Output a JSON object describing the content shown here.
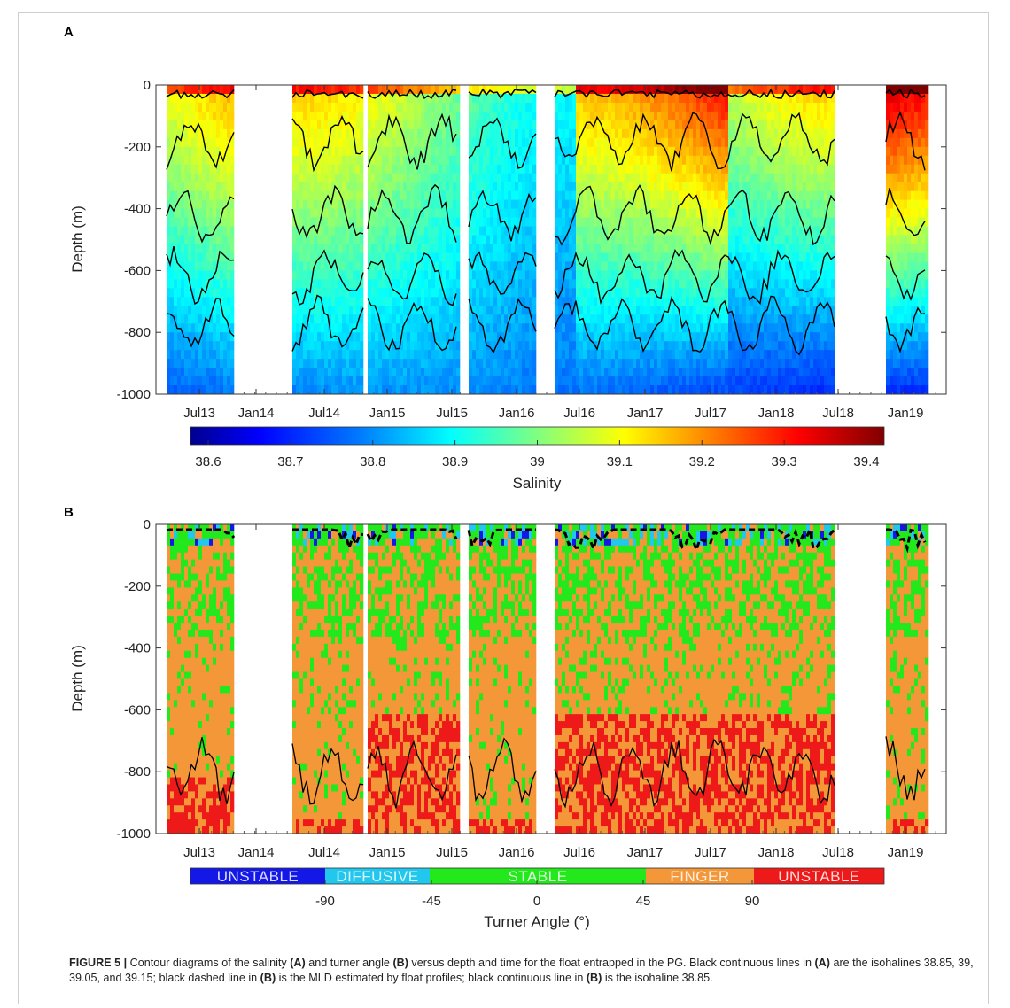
{
  "panels": {
    "a_label": "A",
    "b_label": "B",
    "ylabel": "Depth (m)",
    "colorbar_a_label": "Salinity",
    "colorbar_b_label": "Turner Angle (°)"
  },
  "time_ticks": [
    "Jul13",
    "Jan14",
    "Jul14",
    "Jan15",
    "Jul15",
    "Jan16",
    "Jul16",
    "Jan17",
    "Jul17",
    "Jan18",
    "Jul18",
    "Jan19"
  ],
  "depth_ticks": [
    "0",
    "-200",
    "-400",
    "-600",
    "-800",
    "-1000"
  ],
  "salinity_ticks": [
    "38.6",
    "38.7",
    "38.8",
    "38.9",
    "39",
    "39.1",
    "39.2",
    "39.3",
    "39.4"
  ],
  "turner": {
    "regimes": [
      "UNSTABLE",
      "DIFFUSIVE",
      "STABLE",
      "FINGER",
      "UNSTABLE"
    ],
    "ticks": [
      "-90",
      "-45",
      "0",
      "45",
      "90"
    ]
  },
  "colors": {
    "unstable_neg": "#1418e6",
    "diffusive": "#22c7ee",
    "stable": "#22e81c",
    "finger": "#f39738",
    "unstable_pos": "#ee1a1a"
  },
  "chart_data": [
    {
      "type": "heatmap",
      "panel": "A",
      "xlabel": "",
      "ylabel": "Depth (m)",
      "ylim": [
        -1000,
        0
      ],
      "x_ticks": [
        "Jul13",
        "Jan14",
        "Jul14",
        "Jan15",
        "Jul15",
        "Jan16",
        "Jul16",
        "Jan17",
        "Jul17",
        "Jan18",
        "Jul18",
        "Jan19"
      ],
      "colorbar": {
        "label": "Salinity",
        "range": [
          38.6,
          39.4
        ],
        "ticks": [
          38.6,
          38.7,
          38.8,
          38.9,
          39,
          39.1,
          39.2,
          39.3,
          39.4
        ]
      },
      "contour_levels": [
        38.85,
        39,
        39.05,
        39.15
      ],
      "grid": false
    },
    {
      "type": "heatmap",
      "panel": "B",
      "xlabel": "",
      "ylabel": "Depth (m)",
      "ylim": [
        -1000,
        0
      ],
      "x_ticks": [
        "Jul13",
        "Jan14",
        "Jul14",
        "Jan15",
        "Jul15",
        "Jan16",
        "Jul16",
        "Jan17",
        "Jul17",
        "Jan18",
        "Jul18",
        "Jan19"
      ],
      "colorbar": {
        "label": "Turner Angle (°)",
        "ticks": [
          -90,
          -45,
          0,
          45,
          90
        ],
        "categories": [
          "UNSTABLE",
          "DIFFUSIVE",
          "STABLE",
          "FINGER",
          "UNSTABLE"
        ]
      },
      "grid": false
    }
  ],
  "caption": {
    "figure": "FIGURE 5 |",
    "t1": " Contour diagrams of the salinity ",
    "a1": "(A)",
    "t2": " and turner angle ",
    "b1": "(B)",
    "t3": " versus depth and time for the float entrapped in the PG. Black continuous lines in ",
    "a2": "(A)",
    "t4": " are the isohalines 38.85, 39, 39.05, and 39.15; black dashed line in ",
    "b2": "(B)",
    "t5": " is the MLD estimated by float profiles; black continuous line in ",
    "b3": "(B)",
    "t6": " is the isohaline 38.85."
  }
}
